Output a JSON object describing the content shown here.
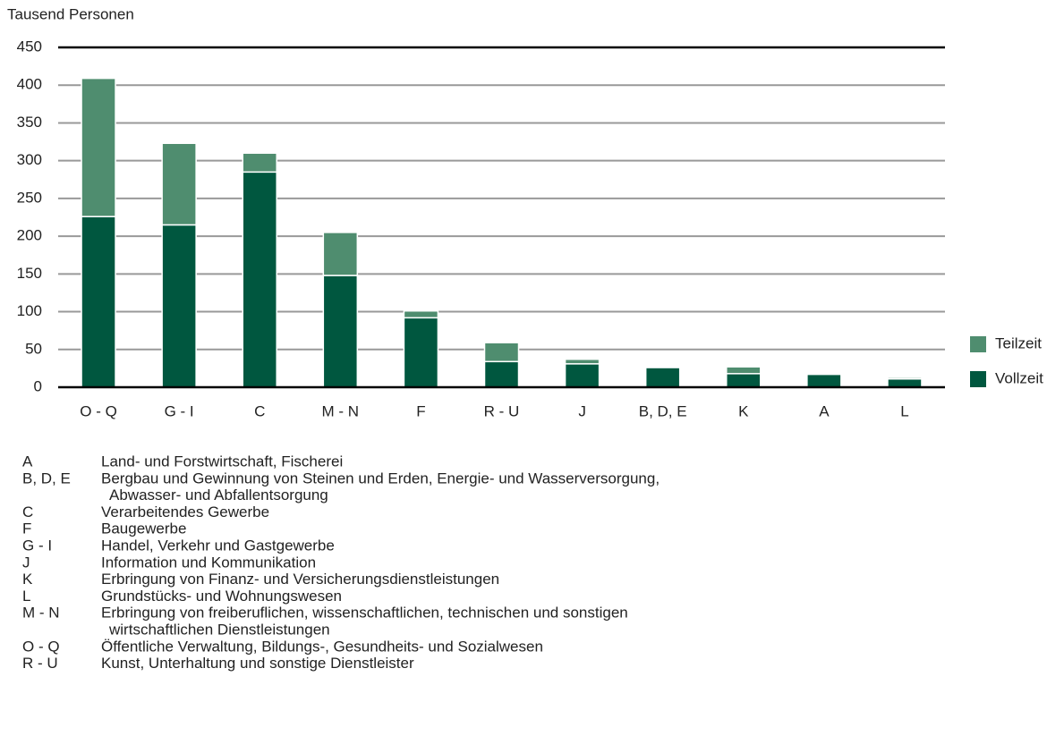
{
  "chart_data": {
    "type": "stacked_bar",
    "y_axis_label": "Tausend Personen",
    "categories": [
      "O - Q",
      "G - I",
      "C",
      "M - N",
      "F",
      "R - U",
      "J",
      "B, D, E",
      "K",
      "A",
      "L"
    ],
    "series": [
      {
        "name": "Vollzeit",
        "color": "#00573f",
        "values": [
          226,
          215,
          285,
          148,
          92,
          34,
          31,
          26,
          18,
          17,
          11
        ]
      },
      {
        "name": "Teilzeit",
        "color": "#4f8d6f",
        "values": [
          183,
          108,
          25,
          57,
          9,
          25,
          6,
          0,
          9,
          0,
          2
        ]
      }
    ],
    "ylim": [
      0,
      450
    ],
    "yticks": [
      0,
      50,
      100,
      150,
      200,
      250,
      300,
      350,
      400,
      450
    ],
    "grid": true,
    "legend": "right"
  },
  "notes": [
    {
      "code": "A",
      "lines": [
        "Land- und Forstwirtschaft, Fischerei"
      ]
    },
    {
      "code": "B, D, E",
      "lines": [
        "Bergbau und Gewinnung von Steinen und Erden, Energie- und Wasserversorgung,",
        "Abwasser- und Abfallentsorgung"
      ]
    },
    {
      "code": "C",
      "lines": [
        "Verarbeitendes Gewerbe"
      ]
    },
    {
      "code": "F",
      "lines": [
        "Baugewerbe"
      ]
    },
    {
      "code": "G - I",
      "lines": [
        "Handel, Verkehr und Gastgewerbe"
      ]
    },
    {
      "code": "J",
      "lines": [
        "Information und Kommunikation"
      ]
    },
    {
      "code": "K",
      "lines": [
        "Erbringung von Finanz- und Versicherungsdienstleistungen"
      ]
    },
    {
      "code": "L",
      "lines": [
        "Grundstücks- und Wohnungswesen"
      ]
    },
    {
      "code": "M - N",
      "lines": [
        "Erbringung von freiberuflichen, wissenschaftlichen, technischen und sonstigen",
        "wirtschaftlichen Dienstleistungen"
      ]
    },
    {
      "code": "O - Q",
      "lines": [
        "Öffentliche Verwaltung, Bildungs-, Gesundheits- und Sozialwesen"
      ]
    },
    {
      "code": "R - U",
      "lines": [
        "Kunst, Unterhaltung und sonstige Dienstleister"
      ]
    }
  ]
}
